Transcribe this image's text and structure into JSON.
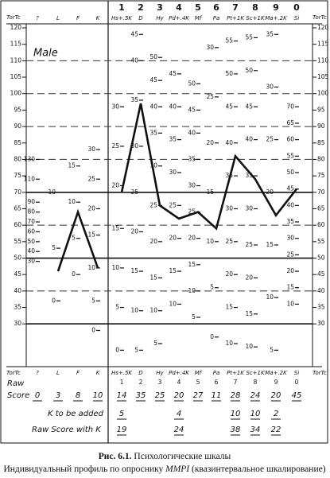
{
  "chart_data": {
    "type": "line",
    "y_label": "TorTc",
    "annotation": "Male",
    "ylim": [
      17,
      120
    ],
    "yticks": [
      30,
      35,
      40,
      45,
      50,
      55,
      60,
      65,
      70,
      75,
      80,
      85,
      90,
      95,
      100,
      105,
      110,
      115,
      120
    ],
    "solid_lines": [
      30,
      50,
      70
    ],
    "dashed_lines": [
      40,
      60,
      80,
      90,
      100,
      110
    ],
    "categories": [
      "?",
      "L",
      "F",
      "K",
      "Hs+.5K",
      "D",
      "Hy",
      "Pd+.4K",
      "Mf",
      "Pa",
      "Pt+1K",
      "Sc+1K",
      "Ma+.2K",
      "Si"
    ],
    "scale_numbers": [
      null,
      null,
      null,
      null,
      1,
      2,
      3,
      4,
      5,
      6,
      7,
      8,
      9,
      0
    ],
    "series": [
      {
        "color": "#111111",
        "values": [
          null,
          46,
          64,
          47,
          null,
          null,
          null,
          null,
          null,
          null,
          null,
          null,
          null,
          null
        ]
      },
      {
        "color": "#111111",
        "values": [
          null,
          null,
          null,
          null,
          70,
          97,
          66,
          62,
          64,
          59,
          81,
          74,
          63,
          71
        ]
      }
    ],
    "raw_scales": [
      [
        {
          "value": 80,
          "label": "130"
        },
        {
          "value": 74,
          "label": "110"
        },
        {
          "value": 67,
          "label": "90"
        },
        {
          "value": 64,
          "label": "80"
        },
        {
          "value": 61,
          "label": "70"
        },
        {
          "value": 58,
          "label": "60"
        },
        {
          "value": 55,
          "label": "50"
        },
        {
          "value": 52,
          "label": "40"
        },
        {
          "value": 49,
          "label": "30"
        }
      ],
      [
        {
          "value": 70,
          "label": "10"
        },
        {
          "value": 53,
          "label": "5"
        },
        {
          "value": 37,
          "label": "0"
        }
      ],
      [
        {
          "value": 78,
          "label": "15"
        },
        {
          "value": 67,
          "label": "10"
        },
        {
          "value": 56,
          "label": "5"
        },
        {
          "value": 45,
          "label": "0"
        }
      ],
      [
        {
          "value": 83,
          "label": "30"
        },
        {
          "value": 74,
          "label": "25"
        },
        {
          "value": 65,
          "label": "20"
        },
        {
          "value": 57,
          "label": "15"
        },
        {
          "value": 47,
          "label": "10"
        },
        {
          "value": 37,
          "label": "5"
        },
        {
          "value": 28,
          "label": "0"
        }
      ],
      [
        {
          "value": 96,
          "label": "30"
        },
        {
          "value": 84,
          "label": "25"
        },
        {
          "value": 72,
          "label": "20"
        },
        {
          "value": 59,
          "label": "15"
        },
        {
          "value": 47,
          "label": "10"
        },
        {
          "value": 35,
          "label": "5"
        },
        {
          "value": 22,
          "label": "0"
        }
      ],
      [
        {
          "value": 118,
          "label": "45"
        },
        {
          "value": 110,
          "label": "40"
        },
        {
          "value": 98,
          "label": "35"
        },
        {
          "value": 84,
          "label": "30"
        },
        {
          "value": 70,
          "label": "25"
        },
        {
          "value": 58,
          "label": "20"
        },
        {
          "value": 46,
          "label": "15"
        },
        {
          "value": 34,
          "label": "10"
        },
        {
          "value": 22,
          "label": "5"
        }
      ],
      [
        {
          "value": 111,
          "label": "50"
        },
        {
          "value": 104,
          "label": "45"
        },
        {
          "value": 96,
          "label": "40"
        },
        {
          "value": 88,
          "label": "35"
        },
        {
          "value": 78,
          "label": "30"
        },
        {
          "value": 66,
          "label": "25"
        },
        {
          "value": 55,
          "label": "20"
        },
        {
          "value": 44,
          "label": "15"
        },
        {
          "value": 34,
          "label": "10"
        },
        {
          "value": 24,
          "label": "5"
        }
      ],
      [
        {
          "value": 106,
          "label": "45"
        },
        {
          "value": 96,
          "label": "40"
        },
        {
          "value": 86,
          "label": "35"
        },
        {
          "value": 76,
          "label": "30"
        },
        {
          "value": 66,
          "label": "25"
        },
        {
          "value": 56,
          "label": "20"
        },
        {
          "value": 46,
          "label": "15"
        },
        {
          "value": 36,
          "label": "10"
        }
      ],
      [
        {
          "value": 103,
          "label": "50"
        },
        {
          "value": 95,
          "label": "45"
        },
        {
          "value": 88,
          "label": "40"
        },
        {
          "value": 80,
          "label": "35"
        },
        {
          "value": 72,
          "label": "30"
        },
        {
          "value": 64,
          "label": "25"
        },
        {
          "value": 56,
          "label": "20"
        },
        {
          "value": 48,
          "label": "15"
        },
        {
          "value": 40,
          "label": "10"
        },
        {
          "value": 32,
          "label": "5"
        }
      ],
      [
        {
          "value": 114,
          "label": "30"
        },
        {
          "value": 99,
          "label": "25"
        },
        {
          "value": 85,
          "label": "20"
        },
        {
          "value": 70,
          "label": "15"
        },
        {
          "value": 55,
          "label": "10"
        },
        {
          "value": 41,
          "label": "5"
        },
        {
          "value": 26,
          "label": "0"
        }
      ],
      [
        {
          "value": 116,
          "label": "55"
        },
        {
          "value": 106,
          "label": "50"
        },
        {
          "value": 96,
          "label": "45"
        },
        {
          "value": 85,
          "label": "40"
        },
        {
          "value": 75,
          "label": "35"
        },
        {
          "value": 65,
          "label": "30"
        },
        {
          "value": 55,
          "label": "25"
        },
        {
          "value": 45,
          "label": "20"
        },
        {
          "value": 35,
          "label": "15"
        },
        {
          "value": 24,
          "label": "10"
        }
      ],
      [
        {
          "value": 117,
          "label": "55"
        },
        {
          "value": 107,
          "label": "50"
        },
        {
          "value": 96,
          "label": "45"
        },
        {
          "value": 86,
          "label": "40"
        },
        {
          "value": 75,
          "label": "35"
        },
        {
          "value": 65,
          "label": "30"
        },
        {
          "value": 54,
          "label": "25"
        },
        {
          "value": 44,
          "label": "20"
        },
        {
          "value": 33,
          "label": "15"
        },
        {
          "value": 23,
          "label": "10"
        }
      ],
      [
        {
          "value": 118,
          "label": "35"
        },
        {
          "value": 102,
          "label": "30"
        },
        {
          "value": 86,
          "label": "25"
        },
        {
          "value": 70,
          "label": "20"
        },
        {
          "value": 54,
          "label": "15"
        },
        {
          "value": 38,
          "label": "10"
        },
        {
          "value": 22,
          "label": "5"
        }
      ],
      [
        {
          "value": 96,
          "label": "70"
        },
        {
          "value": 91,
          "label": "65"
        },
        {
          "value": 86,
          "label": "60"
        },
        {
          "value": 81,
          "label": "55"
        },
        {
          "value": 76,
          "label": "50"
        },
        {
          "value": 71,
          "label": "45"
        },
        {
          "value": 66,
          "label": "40"
        },
        {
          "value": 61,
          "label": "35"
        },
        {
          "value": 56,
          "label": "30"
        },
        {
          "value": 51,
          "label": "25"
        },
        {
          "value": 46,
          "label": "20"
        },
        {
          "value": 41,
          "label": "15"
        },
        {
          "value": 36,
          "label": "10"
        }
      ]
    ]
  },
  "score_table": {
    "raw_label_1": "Raw",
    "raw_label_2": "Score",
    "raw_scores": [
      0,
      3,
      8,
      10,
      14,
      35,
      25,
      20,
      27,
      11,
      28,
      24,
      20,
      45
    ],
    "k_label": "K to be added",
    "k_added": [
      null,
      null,
      null,
      null,
      5,
      null,
      null,
      4,
      null,
      null,
      10,
      10,
      2,
      null
    ],
    "rawk_label": "Raw Score with K",
    "raw_with_k": [
      null,
      null,
      null,
      null,
      19,
      null,
      null,
      24,
      null,
      null,
      38,
      34,
      22,
      null
    ]
  },
  "caption": {
    "figure": "Рис. 6.1.",
    "title": "Психологические шкалы",
    "line2_pre": "Индивидуальный профиль по опроснику ",
    "line2_em": "MMPI",
    "line2_post": " (квазинтервальное шкалирование)"
  }
}
